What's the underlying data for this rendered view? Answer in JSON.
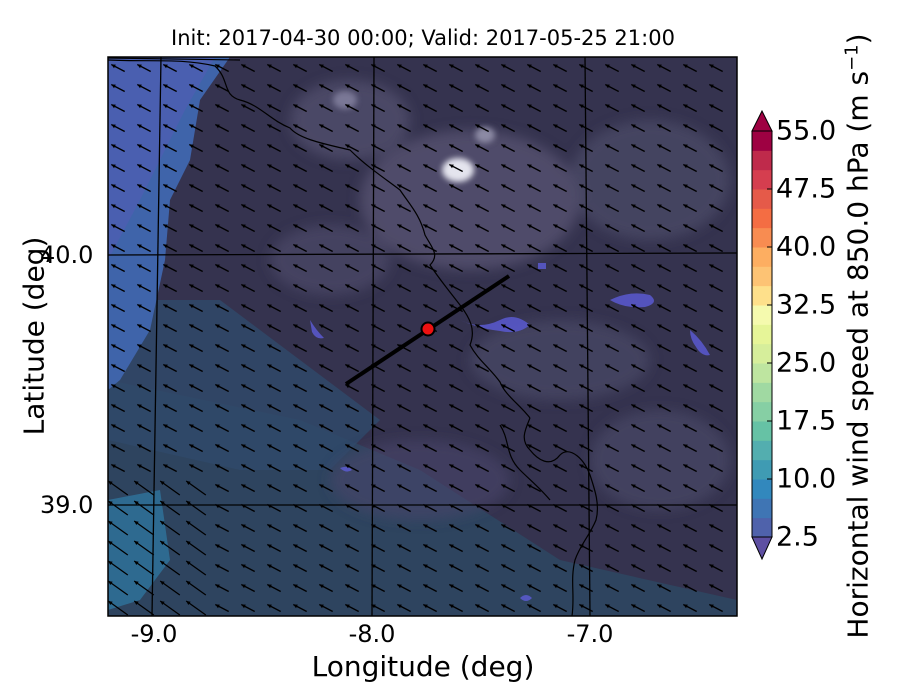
{
  "title": "Init: 2017-04-30 00:00; Valid: 2017-05-25 21:00",
  "xlabel": "Longitude (deg)",
  "ylabel": "Latitude (deg)",
  "x_ticks": [
    {
      "value": -9.0,
      "label": "-9.0"
    },
    {
      "value": -8.0,
      "label": "-8.0"
    },
    {
      "value": -7.0,
      "label": "-7.0"
    }
  ],
  "y_ticks": [
    {
      "value": 40.0,
      "label": "40.0"
    },
    {
      "value": 39.0,
      "label": "39.0"
    }
  ],
  "colorbar": {
    "label_main": "Horizontal wind speed at 850.0 hPa (m s",
    "label_exp": "−1",
    "label_close": ")",
    "min": 2.5,
    "max": 55.0,
    "step": 2.5,
    "extend": "both",
    "ticks": [
      {
        "value": 55.0,
        "label": "55.0"
      },
      {
        "value": 47.5,
        "label": "47.5"
      },
      {
        "value": 40.0,
        "label": "40.0"
      },
      {
        "value": 32.5,
        "label": "32.5"
      },
      {
        "value": 25.0,
        "label": "25.0"
      },
      {
        "value": 17.5,
        "label": "17.5"
      },
      {
        "value": 10.0,
        "label": "10.0"
      },
      {
        "value": 2.5,
        "label": "2.5"
      }
    ]
  },
  "map": {
    "lon_range": [
      -9.25,
      -6.35
    ],
    "lat_range": [
      38.55,
      40.8
    ],
    "cross_section_line": {
      "start": [
        -8.12,
        39.47
      ],
      "end": [
        -7.37,
        39.92
      ]
    },
    "marker": {
      "lon": -7.75,
      "lat": 39.7,
      "color": "#ee1111"
    },
    "wind_direction": "from east-southeast",
    "colors": {
      "ocean_near": "#3e63a8",
      "land_dark": "#2f2d4e",
      "land_mid": "#4a4868",
      "highlight": "#d8d8e4",
      "arrow": "#000000",
      "grid": "#000000"
    }
  }
}
